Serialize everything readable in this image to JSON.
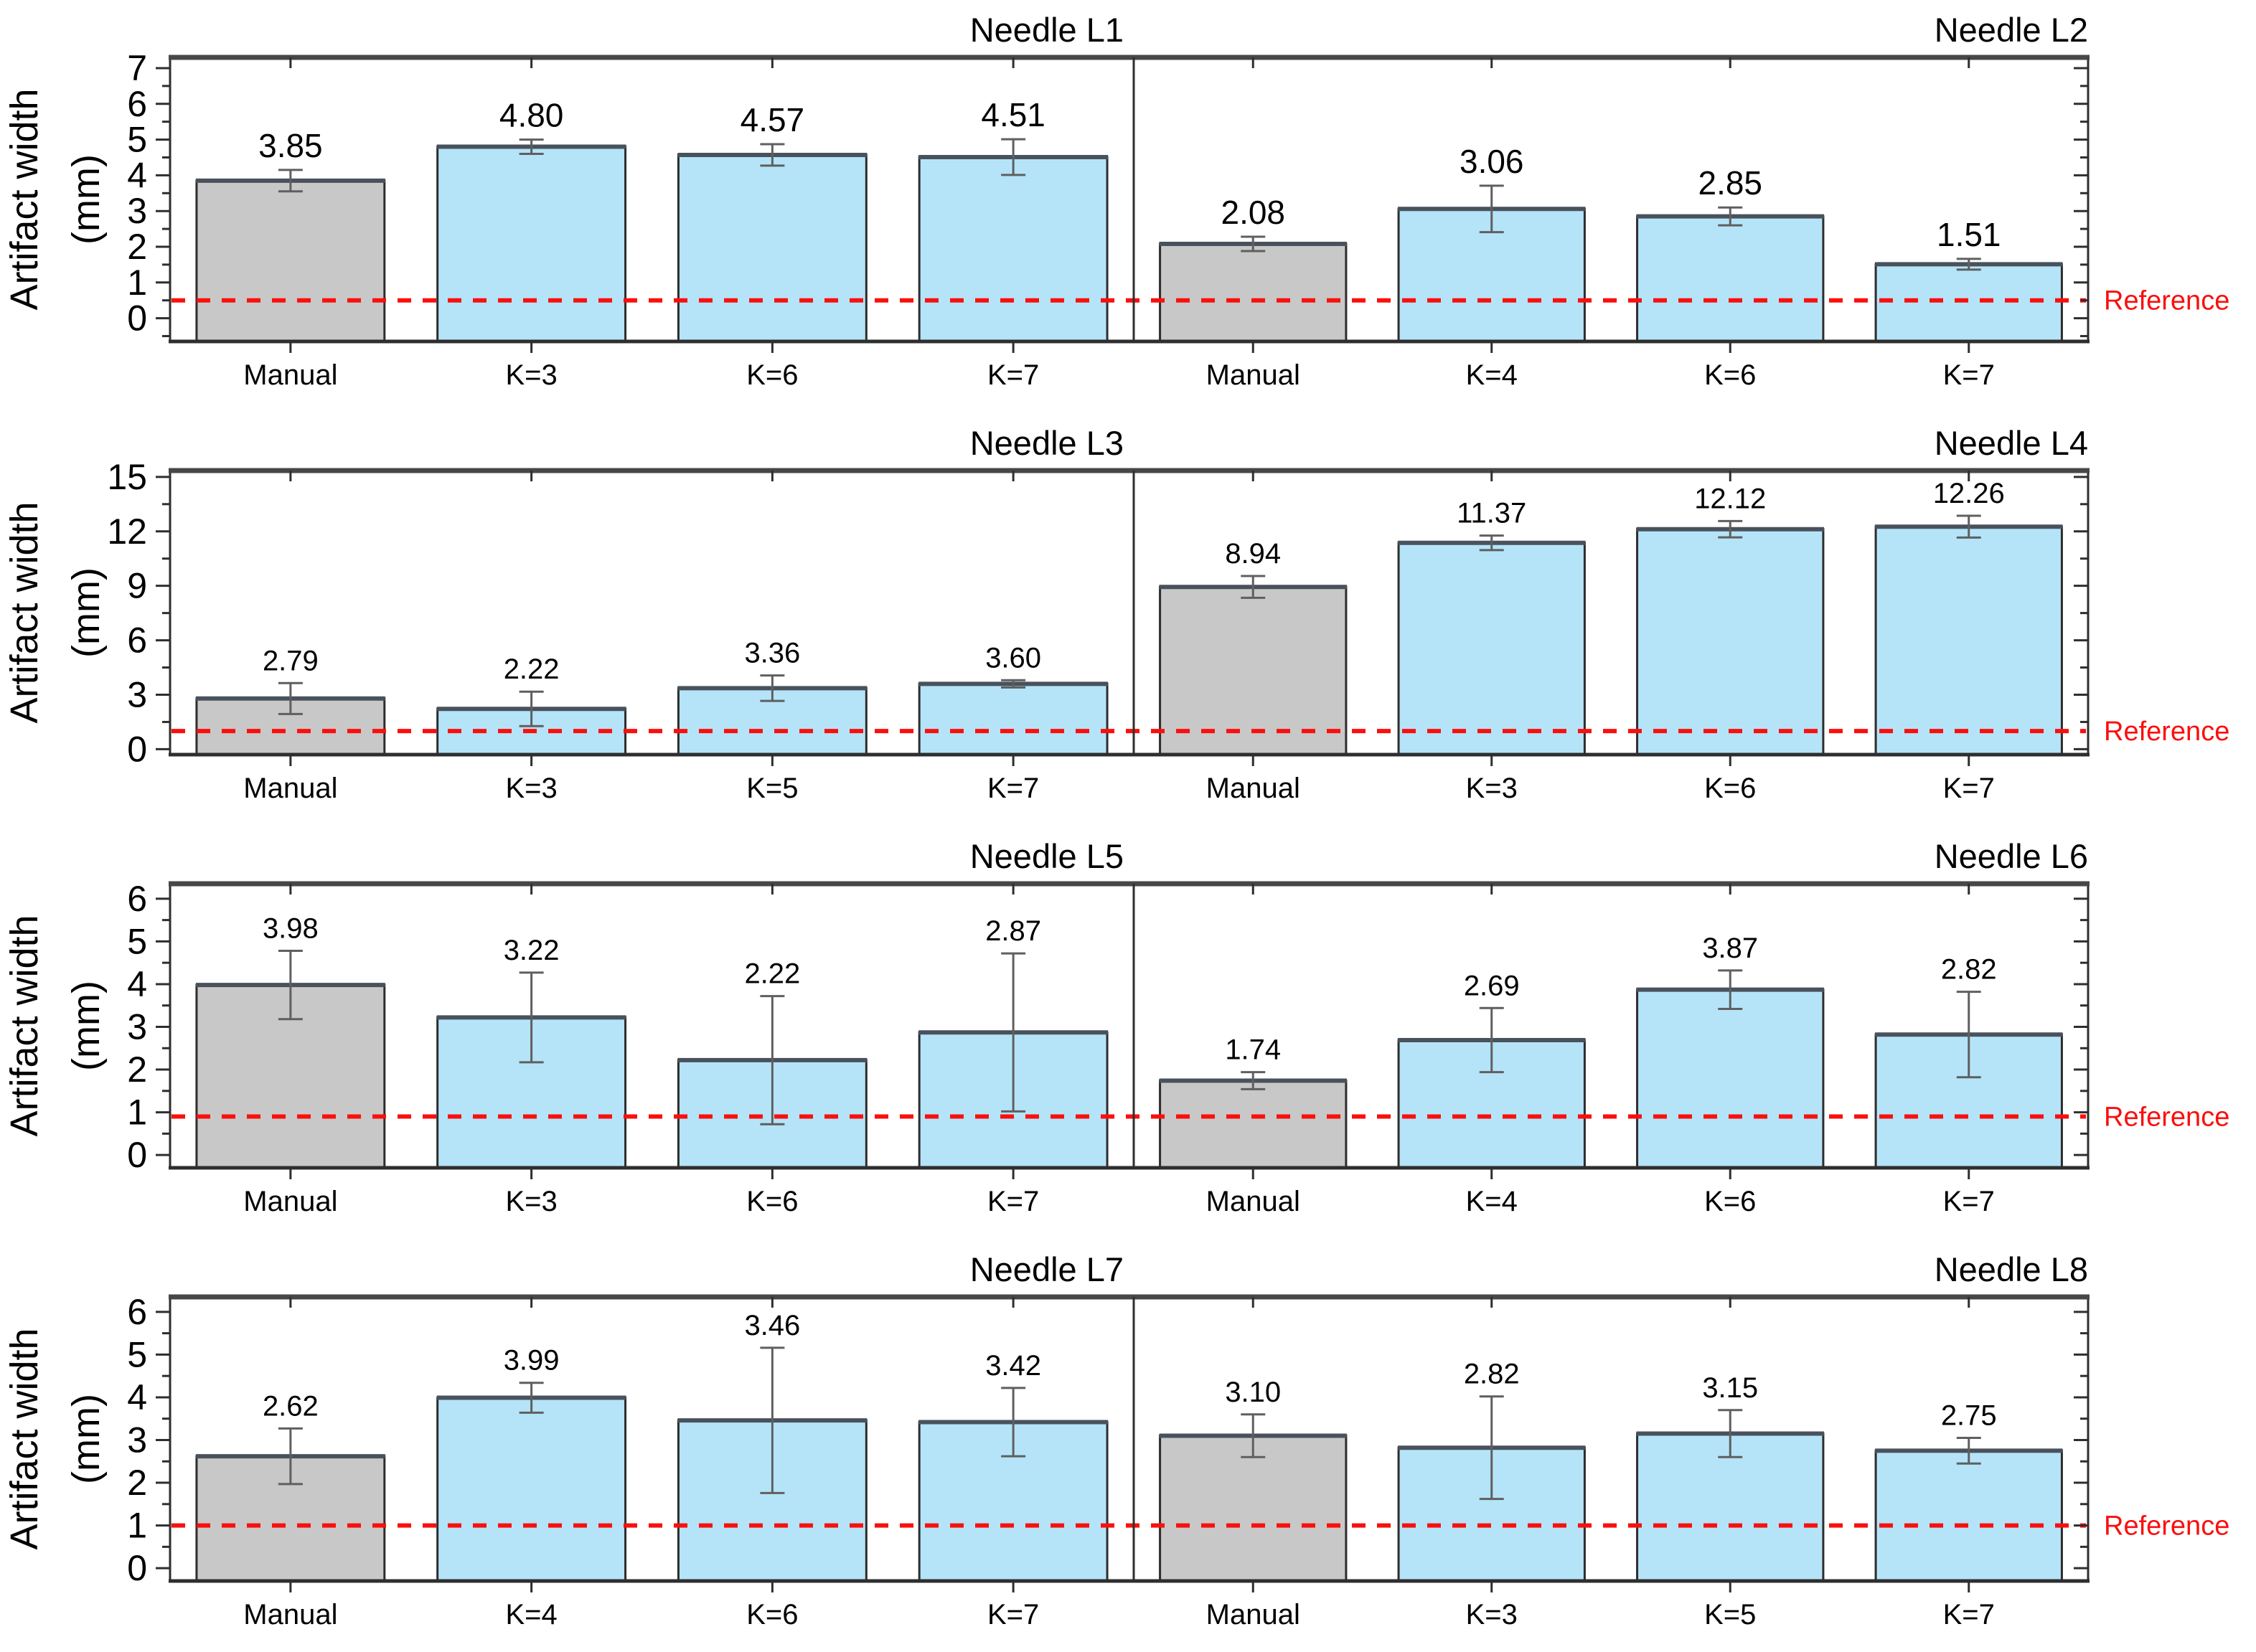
{
  "figure": {
    "ylabel_line1": "Artifact width",
    "ylabel_line2": "(mm)",
    "reference_label": "Reference"
  },
  "colors": {
    "manual_bar_fill": "#c8c8c8",
    "k_bar_fill": "#b5e4f9",
    "bar_border": "#2d2d2d",
    "bar_top_edge": "#49525c",
    "error_bar": "#5f5f5f",
    "reference_line": "#fa0f0d",
    "reference_text": "#fa0f0d",
    "axis": "#2e2e2e",
    "frame_top": "#474747",
    "text": "#000000"
  },
  "chart_data": {
    "type": "bar",
    "ylabel": "Artifact width (mm)",
    "rows": [
      {
        "ylim": [
          -0.65,
          7.3
        ],
        "yticks": [
          0,
          1,
          2,
          3,
          4,
          5,
          6,
          7
        ],
        "minor_step": 0.5,
        "reference_value": 0.5,
        "panels": [
          {
            "title": "Needle L1",
            "categories": [
              "Manual",
              "K=3",
              "K=6",
              "K=7"
            ],
            "values": [
              3.85,
              4.8,
              4.57,
              4.51
            ],
            "value_labels": [
              "3.85",
              "4.80",
              "4.57",
              "4.51"
            ],
            "errors": [
              0.3,
              0.2,
              0.3,
              0.5
            ],
            "bar_types": [
              "manual",
              "k",
              "k",
              "k"
            ]
          },
          {
            "title": "Needle L2",
            "categories": [
              "Manual",
              "K=4",
              "K=6",
              "K=7"
            ],
            "values": [
              2.08,
              3.06,
              2.85,
              1.51
            ],
            "value_labels": [
              "2.08",
              "3.06",
              "2.85",
              "1.51"
            ],
            "errors": [
              0.2,
              0.65,
              0.25,
              0.15
            ],
            "bar_types": [
              "manual",
              "k",
              "k",
              "k"
            ]
          }
        ]
      },
      {
        "ylim": [
          -0.3,
          15.35
        ],
        "yticks": [
          0,
          3,
          6,
          9,
          12,
          15
        ],
        "minor_step": 1.5,
        "reference_value": 1.0,
        "panels": [
          {
            "title": "Needle L3",
            "categories": [
              "Manual",
              "K=3",
              "K=5",
              "K=7"
            ],
            "values": [
              2.79,
              2.22,
              3.36,
              3.6
            ],
            "value_labels": [
              "2.79",
              "2.22",
              "3.36",
              "3.60"
            ],
            "errors": [
              0.85,
              0.95,
              0.7,
              0.2
            ],
            "bar_types": [
              "manual",
              "k",
              "k",
              "k"
            ]
          },
          {
            "title": "Needle L4",
            "categories": [
              "Manual",
              "K=3",
              "K=6",
              "K=7"
            ],
            "values": [
              8.94,
              11.37,
              12.12,
              12.26
            ],
            "value_labels": [
              "8.94",
              "11.37",
              "12.12",
              "12.26"
            ],
            "errors": [
              0.6,
              0.4,
              0.45,
              0.6
            ],
            "bar_types": [
              "manual",
              "k",
              "k",
              "k"
            ]
          }
        ]
      },
      {
        "ylim": [
          -0.3,
          6.35
        ],
        "yticks": [
          0,
          1,
          2,
          3,
          4,
          5,
          6
        ],
        "minor_step": 0.5,
        "reference_value": 0.9,
        "panels": [
          {
            "title": "Needle L5",
            "categories": [
              "Manual",
              "K=3",
              "K=6",
              "K=7"
            ],
            "values": [
              3.98,
              3.22,
              2.22,
              2.87
            ],
            "value_labels": [
              "3.98",
              "3.22",
              "2.22",
              "2.87"
            ],
            "errors": [
              0.8,
              1.05,
              1.5,
              1.85
            ],
            "bar_types": [
              "manual",
              "k",
              "k",
              "k"
            ]
          },
          {
            "title": "Needle L6",
            "categories": [
              "Manual",
              "K=4",
              "K=6",
              "K=7"
            ],
            "values": [
              1.74,
              2.69,
              3.87,
              2.82
            ],
            "value_labels": [
              "1.74",
              "2.69",
              "3.87",
              "2.82"
            ],
            "errors": [
              0.2,
              0.75,
              0.45,
              1.0
            ],
            "bar_types": [
              "manual",
              "k",
              "k",
              "k"
            ]
          }
        ]
      },
      {
        "ylim": [
          -0.3,
          6.35
        ],
        "yticks": [
          0,
          1,
          2,
          3,
          4,
          5,
          6
        ],
        "minor_step": 0.5,
        "reference_value": 1.0,
        "panels": [
          {
            "title": "Needle L7",
            "categories": [
              "Manual",
              "K=4",
              "K=6",
              "K=7"
            ],
            "values": [
              2.62,
              3.99,
              3.46,
              3.42
            ],
            "value_labels": [
              "2.62",
              "3.99",
              "3.46",
              "3.42"
            ],
            "errors": [
              0.65,
              0.35,
              1.7,
              0.8
            ],
            "bar_types": [
              "manual",
              "k",
              "k",
              "k"
            ]
          },
          {
            "title": "Needle L8",
            "categories": [
              "Manual",
              "K=3",
              "K=5",
              "K=7"
            ],
            "values": [
              3.1,
              2.82,
              3.15,
              2.75
            ],
            "value_labels": [
              "3.10",
              "2.82",
              "3.15",
              "2.75"
            ],
            "errors": [
              0.5,
              1.2,
              0.55,
              0.3
            ],
            "bar_types": [
              "manual",
              "k",
              "k",
              "k"
            ]
          }
        ]
      }
    ]
  }
}
